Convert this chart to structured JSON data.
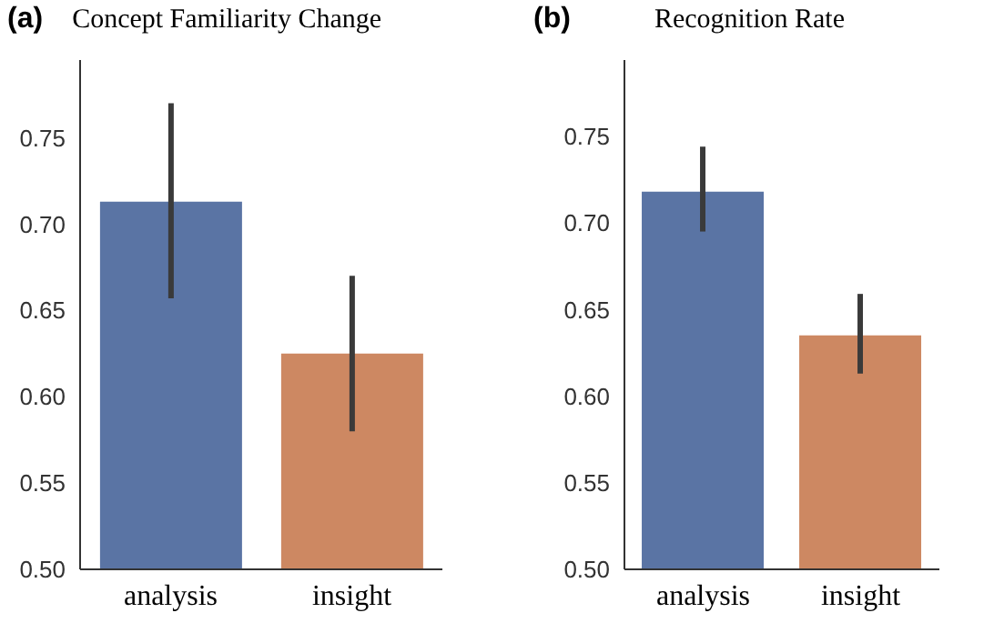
{
  "chart_data": [
    {
      "type": "bar",
      "title": "Concept Familiarity Change",
      "annotations": [
        "(a)"
      ],
      "categories": [
        "analysis",
        "insight"
      ],
      "values": [
        0.713,
        0.625
      ],
      "colors": [
        "#5a74a4",
        "#cd8862"
      ],
      "errors": [
        [
          0.657,
          0.77
        ],
        [
          0.58,
          0.67
        ]
      ],
      "ylim": [
        0.5,
        0.795
      ],
      "yticks": [
        {
          "value": 0.5,
          "label": "0.50"
        },
        0.55,
        {
          "value": 0.6,
          "label": "0.60"
        },
        0.65,
        {
          "value": 0.7,
          "label": "0.70"
        },
        0.75
      ],
      "grid": false,
      "legend": false
    },
    {
      "type": "bar",
      "title": "Recognition Rate",
      "annotations": [
        "(b)"
      ],
      "categories": [
        "analysis",
        "insight"
      ],
      "values": [
        0.718,
        0.635
      ],
      "colors": [
        "#5a74a4",
        "#cd8862"
      ],
      "errors": [
        [
          0.695,
          0.744
        ],
        [
          0.613,
          0.659
        ]
      ],
      "ylim": [
        0.5,
        0.794
      ],
      "yticks": [
        {
          "value": 0.5,
          "label": "0.50"
        },
        0.55,
        {
          "value": 0.6,
          "label": "0.60"
        },
        0.65,
        {
          "value": 0.7,
          "label": "0.70"
        },
        0.75
      ],
      "grid": false,
      "legend": false
    }
  ]
}
